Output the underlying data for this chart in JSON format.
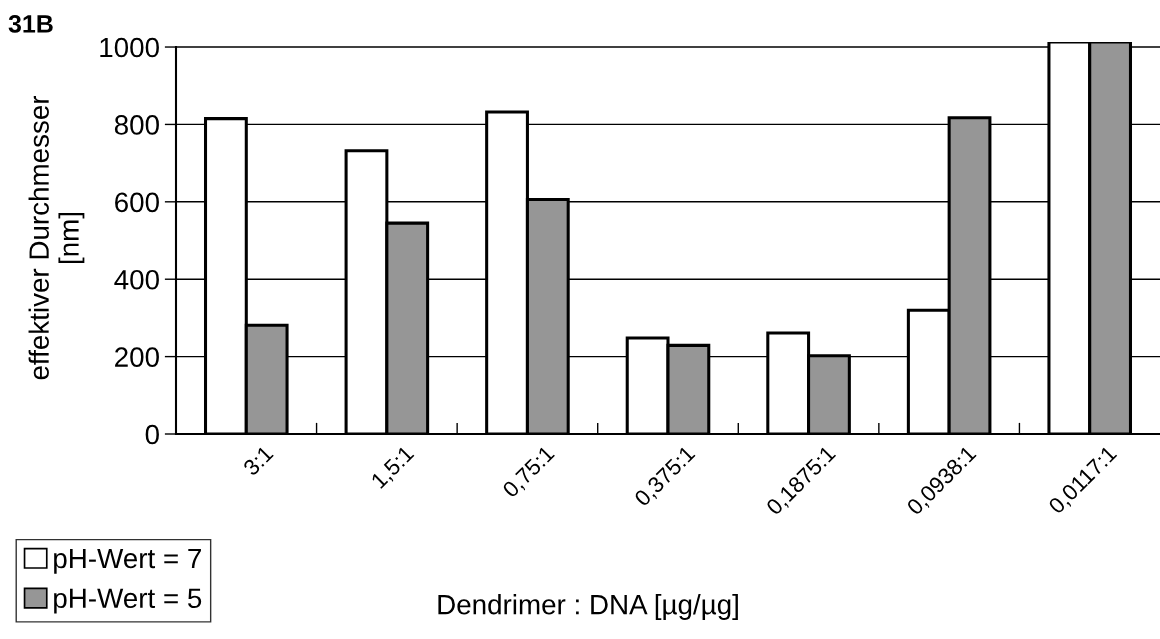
{
  "chart_data": {
    "type": "bar",
    "title": "31B",
    "xlabel": "Dendrimer : DNA [µg/µg]",
    "ylabel": "effektiver Durchmesser\n[nm]",
    "categories": [
      "3:1",
      "1,5:1",
      "0,75:1",
      "0,375:1",
      "0,1875:1",
      "0,0938:1",
      "0,0117:1"
    ],
    "series": [
      {
        "name": "pH-Wert = 7",
        "color": "#ffffff",
        "values": [
          815,
          732,
          832,
          248,
          261,
          320,
          1013
        ]
      },
      {
        "name": "pH-Wert = 5",
        "color": "#969696",
        "values": [
          281,
          545,
          606,
          229,
          202,
          817,
          1013
        ]
      }
    ],
    "ylim": [
      0,
      1013
    ],
    "yticks": [
      0,
      200,
      400,
      600,
      800,
      1000
    ],
    "grid": "y",
    "legend": "bottom left"
  }
}
